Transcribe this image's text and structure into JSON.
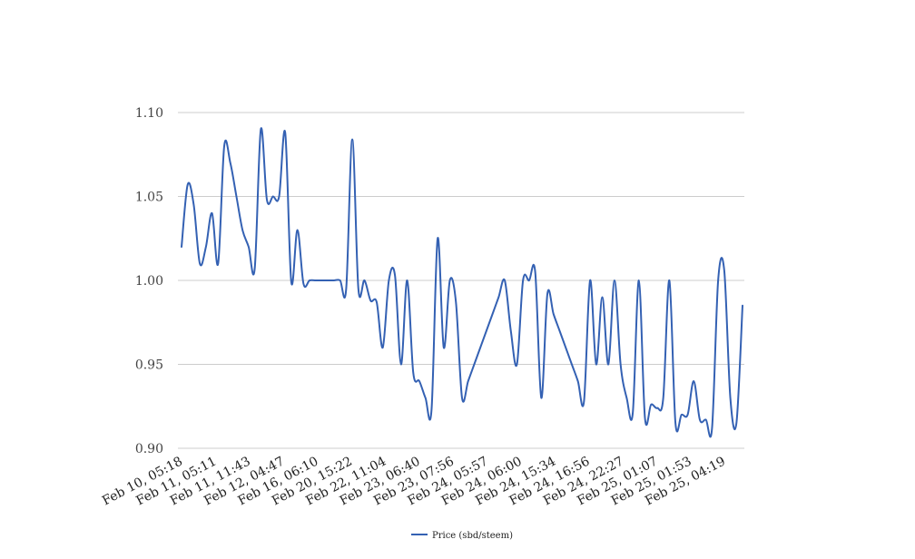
{
  "chart_data": {
    "type": "line",
    "title": "",
    "xlabel": "",
    "ylabel": "",
    "ylim": [
      0.9,
      1.1
    ],
    "y_ticks": [
      "0.90",
      "0.95",
      "1.00",
      "1.05",
      "1.10"
    ],
    "x_tick_labels": [
      "Feb 10, 05:18",
      "Feb 11, 05:11",
      "Feb 11, 11:43",
      "Feb 12, 04:47",
      "Feb 16, 06:10",
      "Feb 20, 15:22",
      "Feb 22, 11:04",
      "Feb 23, 06:40",
      "Feb 23, 07:56",
      "Feb 24, 05:57",
      "Feb 24, 06:00",
      "Feb 24, 15:34",
      "Feb 24, 16:56",
      "Feb 24, 22:27",
      "Feb 25, 01:07",
      "Feb 25, 01:53",
      "Feb 25, 04:19"
    ],
    "grid": true,
    "legend_position": "bottom-center",
    "series": [
      {
        "name": "Price (sbd/steem)",
        "color": "#3461b3",
        "values": [
          1.02,
          1.057,
          1.045,
          1.01,
          1.02,
          1.04,
          1.01,
          1.08,
          1.07,
          1.05,
          1.03,
          1.02,
          1.007,
          1.09,
          1.048,
          1.05,
          1.05,
          1.088,
          0.999,
          1.03,
          0.998,
          1.0,
          1.0,
          1.0,
          1.0,
          1.0,
          1.0,
          0.995,
          1.084,
          0.995,
          1.0,
          0.988,
          0.987,
          0.96,
          1.0,
          1.003,
          0.95,
          1.0,
          0.945,
          0.94,
          0.93,
          0.923,
          1.025,
          0.96,
          1.0,
          0.987,
          0.93,
          0.94,
          0.95,
          0.96,
          0.97,
          0.98,
          0.99,
          1.0,
          0.97,
          0.95,
          1.0,
          1.0,
          1.005,
          0.93,
          0.992,
          0.98,
          0.97,
          0.96,
          0.95,
          0.94,
          0.928,
          1.0,
          0.95,
          0.99,
          0.95,
          1.0,
          0.95,
          0.93,
          0.921,
          1.0,
          0.918,
          0.926,
          0.924,
          0.93,
          1.0,
          0.915,
          0.92,
          0.92,
          0.94,
          0.917,
          0.917,
          0.912,
          1.0,
          1.006,
          0.93,
          0.915,
          0.985
        ]
      }
    ]
  }
}
